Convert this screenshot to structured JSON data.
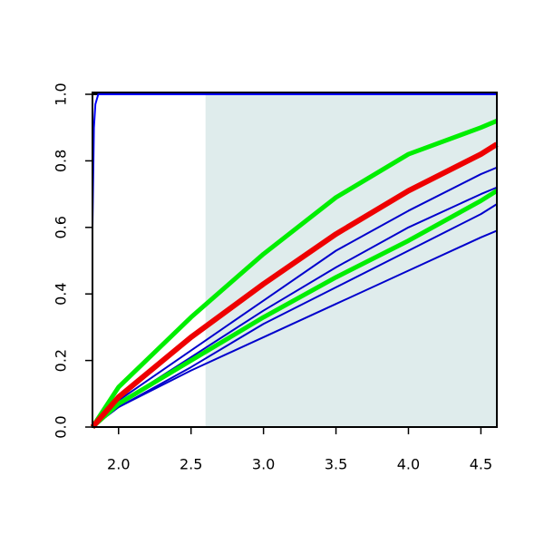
{
  "chart_data": {
    "type": "line",
    "x": [
      1.82,
      2.0,
      2.5,
      3.0,
      3.5,
      4.0,
      4.5,
      4.61
    ],
    "xlim": [
      1.82,
      4.61
    ],
    "ylim": [
      0,
      1
    ],
    "xticks": [
      {
        "value": 2,
        "label": "2.0"
      },
      2.5,
      {
        "value": 3,
        "label": "3.0"
      },
      3.5,
      {
        "value": 4,
        "label": "4.0"
      },
      4.5
    ],
    "yticks": [
      {
        "value": 0,
        "label": "0.0"
      },
      0.2,
      0.4,
      0.6,
      0.8,
      {
        "value": 1,
        "label": "1.0"
      }
    ],
    "shaded_xrange": [
      2.6,
      4.61
    ],
    "shade_color": "#dfecec",
    "series": [
      {
        "color": "#0000cc",
        "width": 2,
        "values": [
          0,
          0.06,
          0.17,
          0.27,
          0.37,
          0.47,
          0.57,
          0.59
        ]
      },
      {
        "color": "#0000cc",
        "width": 2,
        "values": [
          0,
          0.06,
          0.18,
          0.31,
          0.42,
          0.53,
          0.64,
          0.67
        ]
      },
      {
        "color": "#0000cc",
        "width": 2,
        "values": [
          0,
          0.07,
          0.21,
          0.35,
          0.48,
          0.6,
          0.7,
          0.72
        ]
      },
      {
        "color": "#0000cc",
        "width": 2,
        "values": [
          0,
          0.08,
          0.23,
          0.38,
          0.53,
          0.65,
          0.76,
          0.78
        ]
      },
      {
        "color": "#00ee00",
        "width": 5,
        "values": [
          0,
          0.07,
          0.2,
          0.33,
          0.45,
          0.56,
          0.68,
          0.71
        ]
      },
      {
        "color": "#00ee00",
        "width": 5,
        "values": [
          0,
          0.12,
          0.33,
          0.52,
          0.69,
          0.82,
          0.9,
          0.92
        ]
      },
      {
        "color": "#ee0000",
        "width": 6,
        "values": [
          0,
          0.09,
          0.27,
          0.43,
          0.58,
          0.71,
          0.82,
          0.85
        ]
      },
      {
        "color": "#000000",
        "width": 2,
        "x": [
          1.82,
          2.6
        ],
        "values": [
          1,
          1
        ]
      },
      {
        "color": "#0000ff",
        "width": 2,
        "x": [
          1.82,
          1.83,
          1.84,
          1.86,
          4.61
        ],
        "values": [
          0.6,
          0.9,
          0.97,
          1,
          1
        ]
      }
    ]
  }
}
